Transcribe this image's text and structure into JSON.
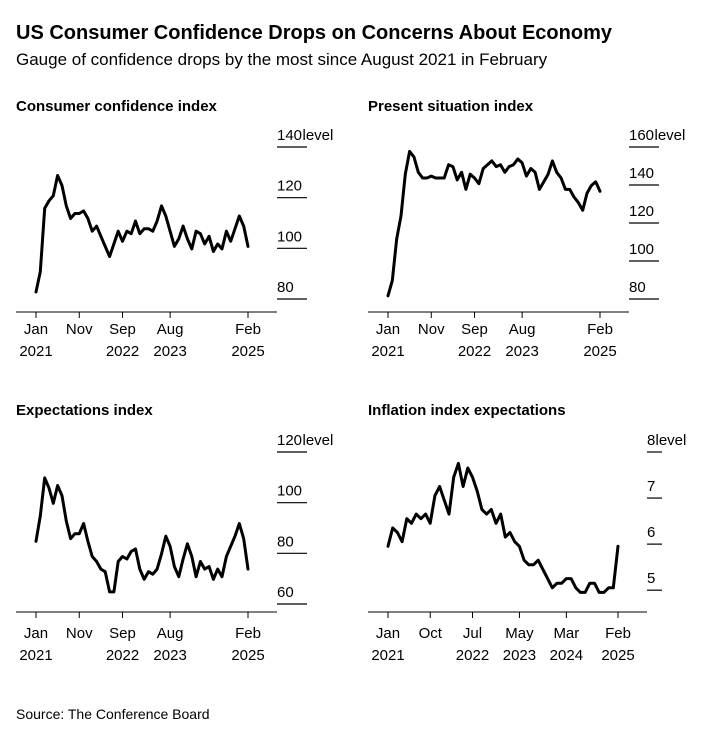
{
  "title": "US Consumer Confidence Drops on Concerns About Economy",
  "subtitle": "Gauge of confidence drops by the most since August 2021 in February",
  "source": "Source: The Conference Board",
  "colors": {
    "line": "#000000",
    "axis": "#000000",
    "background": "#ffffff"
  },
  "chart_data": [
    {
      "type": "line",
      "title": "Consumer confidence index",
      "ylabel": "level",
      "ylim": [
        80,
        140
      ],
      "yticks": [
        80,
        100,
        120,
        140
      ],
      "x_range": [
        0,
        49
      ],
      "xticks": [
        {
          "pos": 0,
          "line1": "Jan",
          "line2": "2021"
        },
        {
          "pos": 10,
          "line1": "Nov",
          "line2": ""
        },
        {
          "pos": 20,
          "line1": "Sep",
          "line2": "2022"
        },
        {
          "pos": 31,
          "line1": "Aug",
          "line2": "2023"
        },
        {
          "pos": 49,
          "line1": "Feb",
          "line2": "2025"
        }
      ],
      "values": [
        80,
        88,
        113,
        116,
        118,
        126,
        122,
        114,
        109,
        111,
        111,
        112,
        109,
        104,
        106,
        102,
        98,
        94,
        99,
        104,
        100,
        104,
        103,
        108,
        103,
        105,
        105,
        104,
        108,
        114,
        110,
        104,
        98,
        101,
        106,
        101,
        97,
        104,
        103,
        99,
        102,
        96,
        99,
        97,
        104,
        100,
        105,
        110,
        106,
        98
      ]
    },
    {
      "type": "line",
      "title": "Present situation index",
      "ylabel": "level",
      "ylim": [
        80,
        160
      ],
      "yticks": [
        80,
        100,
        120,
        140,
        160
      ],
      "x_range": [
        0,
        49
      ],
      "xticks": [
        {
          "pos": 0,
          "line1": "Jan",
          "line2": "2021"
        },
        {
          "pos": 10,
          "line1": "Nov",
          "line2": ""
        },
        {
          "pos": 20,
          "line1": "Sep",
          "line2": "2022"
        },
        {
          "pos": 31,
          "line1": "Aug",
          "line2": "2023"
        },
        {
          "pos": 49,
          "line1": "Feb",
          "line2": "2025"
        }
      ],
      "values": [
        78,
        86,
        108,
        120,
        142,
        154,
        151,
        143,
        140,
        140,
        141,
        140,
        140,
        140,
        147,
        146,
        139,
        143,
        134,
        142,
        140,
        137,
        145,
        147,
        149,
        146,
        147,
        143,
        146,
        147,
        150,
        148,
        141,
        145,
        143,
        134,
        138,
        142,
        149,
        143,
        140,
        134,
        134,
        130,
        127,
        123,
        132,
        136,
        138,
        133
      ]
    },
    {
      "type": "line",
      "title": "Expectations index",
      "ylabel": "level",
      "ylim": [
        60,
        120
      ],
      "yticks": [
        60,
        80,
        100,
        120
      ],
      "x_range": [
        0,
        49
      ],
      "xticks": [
        {
          "pos": 0,
          "line1": "Jan",
          "line2": "2021"
        },
        {
          "pos": 10,
          "line1": "Nov",
          "line2": ""
        },
        {
          "pos": 20,
          "line1": "Sep",
          "line2": "2022"
        },
        {
          "pos": 31,
          "line1": "Aug",
          "line2": "2023"
        },
        {
          "pos": 49,
          "line1": "Feb",
          "line2": "2025"
        }
      ],
      "values": [
        82,
        92,
        107,
        103,
        97,
        104,
        100,
        90,
        83,
        85,
        85,
        89,
        82,
        76,
        74,
        71,
        70,
        62,
        62,
        74,
        76,
        75,
        78,
        79,
        71,
        67,
        70,
        69,
        71,
        77,
        84,
        80,
        72,
        68,
        75,
        81,
        76,
        68,
        74,
        71,
        72,
        67,
        71,
        68,
        76,
        80,
        84,
        89,
        83,
        71
      ]
    },
    {
      "type": "line",
      "title": "Inflation index expectations",
      "ylabel": "level",
      "ylim": [
        4.7,
        8
      ],
      "yticks": [
        5,
        6,
        7,
        8
      ],
      "x_range": [
        0,
        49
      ],
      "xticks": [
        {
          "pos": 0,
          "line1": "Jan",
          "line2": "2021"
        },
        {
          "pos": 9,
          "line1": "Oct",
          "line2": ""
        },
        {
          "pos": 18,
          "line1": "Jul",
          "line2": "2022"
        },
        {
          "pos": 28,
          "line1": "May",
          "line2": "2023"
        },
        {
          "pos": 38,
          "line1": "Mar",
          "line2": "2024"
        },
        {
          "pos": 49,
          "line1": "Feb",
          "line2": "2025"
        }
      ],
      "values": [
        5.8,
        6.2,
        6.1,
        5.9,
        6.4,
        6.3,
        6.5,
        6.4,
        6.5,
        6.3,
        6.9,
        7.1,
        6.8,
        6.5,
        7.3,
        7.6,
        7.1,
        7.5,
        7.3,
        7.0,
        6.6,
        6.5,
        6.6,
        6.3,
        6.5,
        6.0,
        6.1,
        5.9,
        5.8,
        5.5,
        5.4,
        5.4,
        5.5,
        5.3,
        5.1,
        4.9,
        5.0,
        5.0,
        5.1,
        5.1,
        4.9,
        4.8,
        4.8,
        5.0,
        5.0,
        4.8,
        4.8,
        4.9,
        4.9,
        5.8
      ]
    }
  ]
}
